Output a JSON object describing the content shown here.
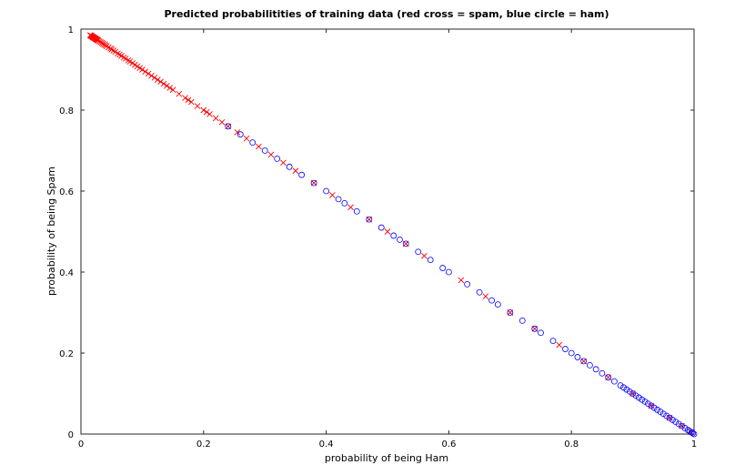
{
  "chart_data": {
    "type": "scatter",
    "title": "Predicted probabilitities of training data (red cross = spam, blue circle = ham)",
    "xlabel": "probability of being Ham",
    "ylabel": "probability of being Spam",
    "xlim": [
      0,
      1
    ],
    "ylim": [
      0,
      1
    ],
    "x_ticks": [
      "0",
      "0.2",
      "0.4",
      "0.6",
      "0.8",
      "1"
    ],
    "y_ticks": [
      "0",
      "0.2",
      "0.4",
      "0.6",
      "0.8",
      "1"
    ],
    "x_tick_values": [
      0,
      0.2,
      0.4,
      0.6,
      0.8,
      1
    ],
    "y_tick_values": [
      0,
      0.2,
      0.4,
      0.6,
      0.8,
      1
    ],
    "grid": false,
    "series": [
      {
        "marker": "x",
        "color": "#ff0000",
        "x": [
          0.015,
          0.016,
          0.017,
          0.018,
          0.019,
          0.02,
          0.021,
          0.022,
          0.023,
          0.024,
          0.025,
          0.026,
          0.027,
          0.028,
          0.03,
          0.032,
          0.034,
          0.036,
          0.038,
          0.04,
          0.042,
          0.045,
          0.048,
          0.05,
          0.053,
          0.056,
          0.06,
          0.063,
          0.066,
          0.07,
          0.073,
          0.077,
          0.08,
          0.084,
          0.088,
          0.092,
          0.096,
          0.1,
          0.105,
          0.11,
          0.115,
          0.12,
          0.125,
          0.13,
          0.135,
          0.14,
          0.145,
          0.15,
          0.16,
          0.17,
          0.175,
          0.18,
          0.19,
          0.2,
          0.205,
          0.21,
          0.22,
          0.23,
          0.24,
          0.255,
          0.27,
          0.29,
          0.31,
          0.33,
          0.35,
          0.38,
          0.41,
          0.44,
          0.47,
          0.5,
          0.53,
          0.56,
          0.62,
          0.66,
          0.7,
          0.74,
          0.78,
          0.82,
          0.86,
          0.9,
          0.93,
          0.96,
          0.98,
          0.995
        ],
        "y": [
          0.985,
          0.984,
          0.983,
          0.982,
          0.981,
          0.98,
          0.979,
          0.978,
          0.977,
          0.976,
          0.975,
          0.974,
          0.973,
          0.972,
          0.97,
          0.968,
          0.966,
          0.964,
          0.962,
          0.96,
          0.958,
          0.955,
          0.952,
          0.95,
          0.947,
          0.944,
          0.94,
          0.937,
          0.934,
          0.93,
          0.927,
          0.923,
          0.92,
          0.916,
          0.912,
          0.908,
          0.904,
          0.9,
          0.895,
          0.89,
          0.885,
          0.88,
          0.875,
          0.87,
          0.865,
          0.86,
          0.855,
          0.85,
          0.84,
          0.83,
          0.825,
          0.82,
          0.81,
          0.8,
          0.795,
          0.79,
          0.78,
          0.77,
          0.76,
          0.745,
          0.73,
          0.71,
          0.69,
          0.67,
          0.65,
          0.62,
          0.59,
          0.56,
          0.53,
          0.5,
          0.47,
          0.44,
          0.38,
          0.34,
          0.3,
          0.26,
          0.22,
          0.18,
          0.14,
          0.1,
          0.07,
          0.04,
          0.02,
          0.005
        ]
      },
      {
        "marker": "o",
        "color": "#0000ff",
        "x": [
          0.24,
          0.26,
          0.28,
          0.3,
          0.32,
          0.34,
          0.36,
          0.38,
          0.4,
          0.42,
          0.43,
          0.45,
          0.47,
          0.49,
          0.51,
          0.52,
          0.53,
          0.55,
          0.57,
          0.59,
          0.6,
          0.63,
          0.65,
          0.67,
          0.68,
          0.7,
          0.72,
          0.74,
          0.75,
          0.77,
          0.79,
          0.8,
          0.81,
          0.82,
          0.83,
          0.84,
          0.85,
          0.86,
          0.87,
          0.88,
          0.885,
          0.89,
          0.895,
          0.9,
          0.905,
          0.91,
          0.915,
          0.92,
          0.925,
          0.93,
          0.935,
          0.94,
          0.945,
          0.95,
          0.955,
          0.96,
          0.965,
          0.97,
          0.975,
          0.98,
          0.985,
          0.99,
          0.993,
          0.996,
          0.998,
          1.0
        ],
        "y": [
          0.76,
          0.74,
          0.72,
          0.7,
          0.68,
          0.66,
          0.64,
          0.62,
          0.6,
          0.58,
          0.57,
          0.55,
          0.53,
          0.51,
          0.49,
          0.48,
          0.47,
          0.45,
          0.43,
          0.41,
          0.4,
          0.37,
          0.35,
          0.33,
          0.32,
          0.3,
          0.28,
          0.26,
          0.25,
          0.23,
          0.21,
          0.2,
          0.19,
          0.18,
          0.17,
          0.16,
          0.15,
          0.14,
          0.13,
          0.12,
          0.115,
          0.11,
          0.105,
          0.1,
          0.095,
          0.09,
          0.085,
          0.08,
          0.075,
          0.07,
          0.065,
          0.06,
          0.055,
          0.05,
          0.045,
          0.04,
          0.035,
          0.03,
          0.025,
          0.02,
          0.015,
          0.01,
          0.007,
          0.004,
          0.002,
          0.0
        ]
      }
    ]
  }
}
